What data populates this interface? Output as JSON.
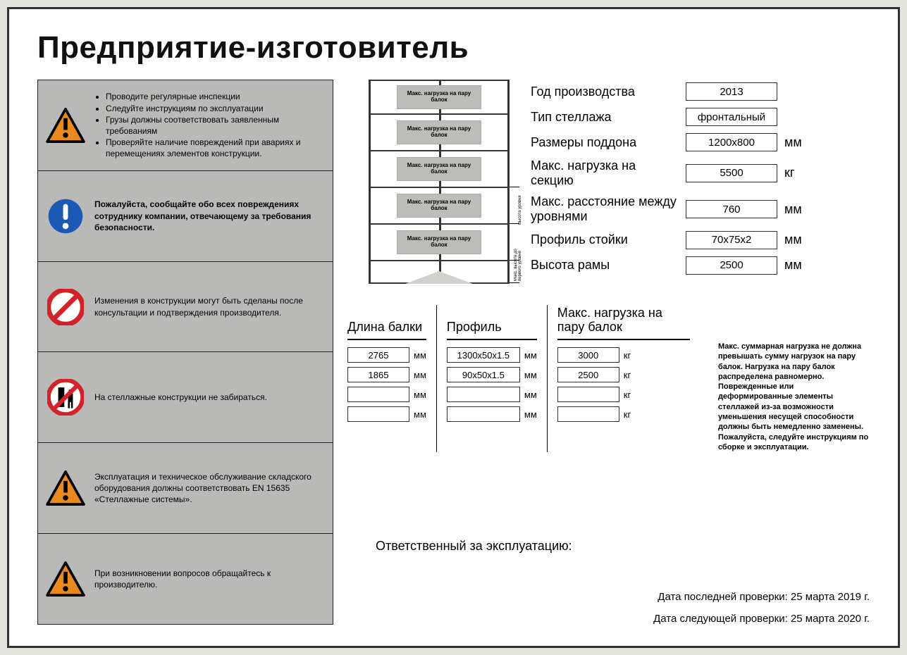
{
  "title": "Предприятие-изготовитель",
  "warnings": [
    {
      "icon": "tri",
      "bullets": [
        "Проводите регулярные инспекции",
        "Следуйте инструкциям по эксплуатации",
        "Грузы должны соответствовать заявленным требованиям",
        "Проверяйте наличие повреждений при авариях и перемещениях элементов конструкции."
      ]
    },
    {
      "icon": "excl",
      "text": "Пожалуйста, сообщайте обо всех повреждениях сотруднику компании, отвечающему за требования безопасности."
    },
    {
      "icon": "prohA",
      "text": "Изменения в конструкции могут быть сделаны после консультации и подтверждения производителя."
    },
    {
      "icon": "prohB",
      "text": "На стеллажные конструкции не забираться."
    },
    {
      "icon": "tri",
      "text": "Эксплуатация и техническое обслуживание складского оборудования должны соответствовать EN 15635 «Стеллажные системы»."
    },
    {
      "icon": "tri",
      "text": "При возникновении вопросов обращайтесь к производителю."
    }
  ],
  "rack_load_label": "Макс. нагрузка на пару балок",
  "rack_vlabel1": "Высота уровня",
  "rack_vlabel2": "Макс. высота до первого уровня",
  "specs": [
    {
      "label": "Год производства",
      "value": "2013",
      "unit": ""
    },
    {
      "label": "Тип стеллажа",
      "value": "фронтальный",
      "unit": ""
    },
    {
      "label": "Размеры поддона",
      "value": "1200x800",
      "unit": "мм"
    },
    {
      "label": "Макс. нагрузка на секцию",
      "value": "5500",
      "unit": "кг"
    },
    {
      "label": "Макс. расстояние между уровнями",
      "value": "760",
      "unit": "мм"
    },
    {
      "label": "Профиль стойки",
      "value": "70x75x2",
      "unit": "мм"
    },
    {
      "label": "Высота рамы",
      "value": "2500",
      "unit": "мм"
    }
  ],
  "beam_headers": [
    "Длина балки",
    "Профиль",
    "Макс. нагрузка на пару балок"
  ],
  "beam_units": [
    "мм",
    "мм",
    "кг"
  ],
  "beam_rows": [
    [
      "2765",
      "1300x50x1.5",
      "3000"
    ],
    [
      "1865",
      "90x50x1.5",
      "2500"
    ],
    [
      "",
      "",
      ""
    ],
    [
      "",
      "",
      ""
    ]
  ],
  "note": "Макс. суммарная нагрузка не должна превышать сумму нагрузок на пару балок. Нагрузка на пару балок распределена равномерно. Поврежденные или деформированные элементы стеллажей из-за возможности уменьшения несущей способности должны быть немедленно заменены. Пожалуйста, следуйте инструкциям по сборке и эксплуатации.",
  "responsible": "Ответственный за эксплуатацию:",
  "date_last_label": "Дата последней проверки:",
  "date_last_value": "25 марта 2019 г.",
  "date_next_label": "Дата следующей проверки:",
  "date_next_value": "25 марта 2020 г.",
  "colors": {
    "panel_bg": "#b9bab7",
    "tri_fill": "#e98a1f",
    "tri_border": "#000",
    "circle_blue": "#1c59b5",
    "circle_red": "#d2232a"
  }
}
